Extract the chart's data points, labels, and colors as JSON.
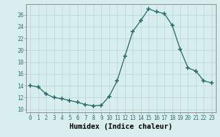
{
  "x": [
    0,
    1,
    2,
    3,
    4,
    5,
    6,
    7,
    8,
    9,
    10,
    11,
    12,
    13,
    14,
    15,
    16,
    17,
    18,
    19,
    20,
    21,
    22,
    23
  ],
  "y": [
    14.0,
    13.8,
    12.6,
    12.0,
    11.8,
    11.5,
    11.2,
    10.8,
    10.6,
    10.7,
    12.2,
    14.8,
    19.0,
    23.2,
    25.0,
    27.0,
    26.5,
    26.2,
    24.2,
    20.2,
    17.0,
    16.5,
    14.8,
    14.5
  ],
  "line_color": "#2d6e6e",
  "marker": "+",
  "marker_size": 4,
  "bg_color": "#d8eeee",
  "grid_color": "#b8d4d4",
  "xlabel": "Humidex (Indice chaleur)",
  "ylim": [
    9.5,
    27.8
  ],
  "xlim": [
    -0.5,
    23.5
  ],
  "yticks": [
    10,
    12,
    14,
    16,
    18,
    20,
    22,
    24,
    26
  ],
  "xticks": [
    0,
    1,
    2,
    3,
    4,
    5,
    6,
    7,
    8,
    9,
    10,
    11,
    12,
    13,
    14,
    15,
    16,
    17,
    18,
    19,
    20,
    21,
    22,
    23
  ],
  "tick_label_fontsize": 5.5,
  "xlabel_fontsize": 7.5,
  "line_width": 1.0,
  "marker_linewidth": 1.2
}
